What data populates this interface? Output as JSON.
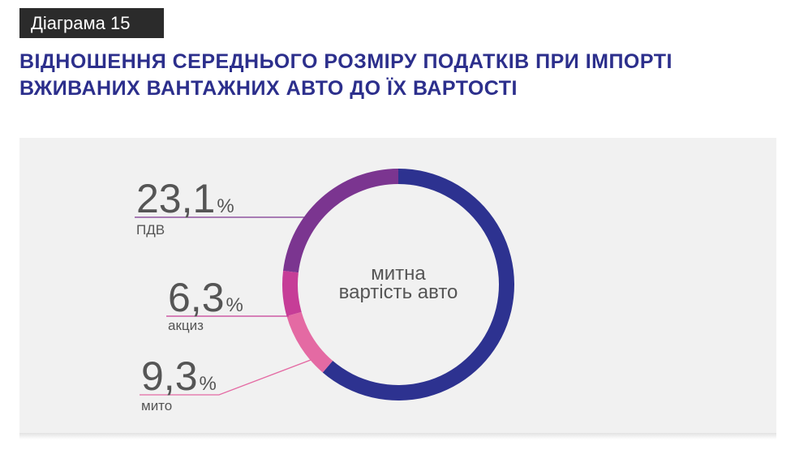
{
  "header": {
    "tag": "Діаграма 15",
    "title": "ВІДНОШЕННЯ СЕРЕДНЬОГО РОЗМІРУ ПОДАТКІВ ПРИ ІМПОРТІ ВЖИВАНИХ ВАНТАЖНИХ АВТО ДО ЇХ ВАРТОСТІ"
  },
  "chart_data": {
    "type": "pie",
    "style": "donut",
    "center_label_lines": [
      "митна",
      "вартість авто"
    ],
    "slices": [
      {
        "label": "ПДВ",
        "value": 23.1,
        "display": "23,1",
        "unit": "%",
        "color": "#7b3590"
      },
      {
        "label": "акциз",
        "value": 6.3,
        "display": "6,3",
        "unit": "%",
        "color": "#c63d97"
      },
      {
        "label": "мито",
        "value": 9.3,
        "display": "9,3",
        "unit": "%",
        "color": "#e46aa3"
      }
    ],
    "base_color": "#2d3290"
  },
  "colors": {
    "title": "#2c2f8c",
    "tag_bg": "#2b2b2b",
    "panel_bg": "#f1f1f1",
    "text": "#555555"
  }
}
